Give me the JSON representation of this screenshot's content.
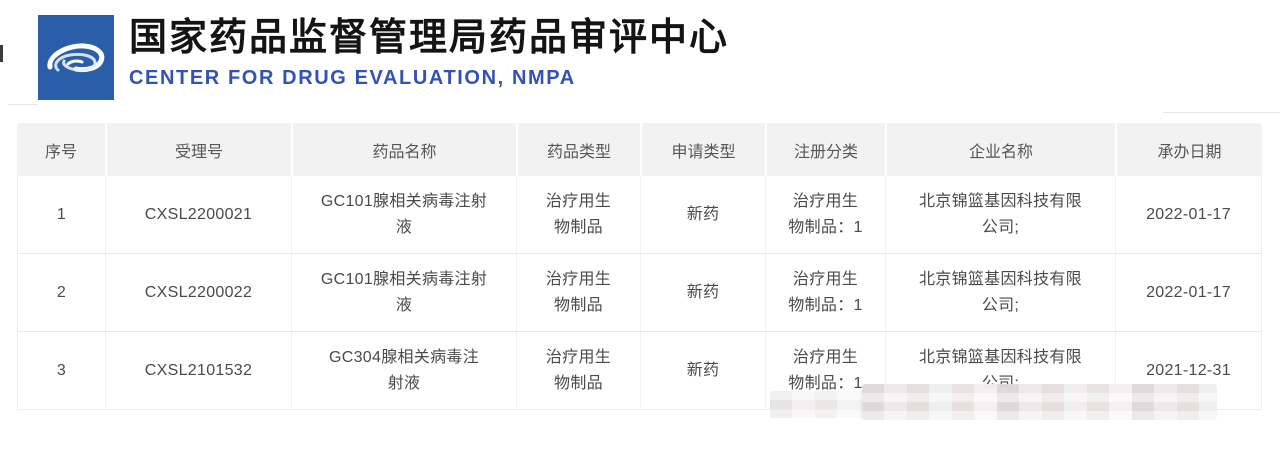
{
  "header": {
    "title_cn": "国家药品监督管理局药品审评中心",
    "title_en": "CENTER FOR DRUG EVALUATION, NMPA",
    "logo_icon": "cde-swan-logo",
    "logo_bg_color": "#2b5ea9",
    "accent_color": "#3452b4"
  },
  "table": {
    "columns": [
      "序号",
      "受理号",
      "药品名称",
      "药品类型",
      "申请类型",
      "注册分类",
      "企业名称",
      "承办日期"
    ],
    "rows": [
      [
        "1",
        "CXSL2200021",
        "GC101腺相关病毒注射\n液",
        "治疗用生\n物制品",
        "新药",
        "治疗用生\n物制品：1",
        "北京锦篮基因科技有限\n公司;",
        "2022-01-17"
      ],
      [
        "2",
        "CXSL2200022",
        "GC101腺相关病毒注射\n液",
        "治疗用生\n物制品",
        "新药",
        "治疗用生\n物制品：1",
        "北京锦篮基因科技有限\n公司;",
        "2022-01-17"
      ],
      [
        "3",
        "CXSL2101532",
        "GC304腺相关病毒注\n射液",
        "治疗用生\n物制品",
        "新药",
        "治疗用生\n物制品：1",
        "北京锦篮基因科技有限\n公司;",
        "2021-12-31"
      ]
    ],
    "header_bg": "#f2f2f2",
    "border_color": "#e9e9e9",
    "text_color": "#4a4a4a"
  }
}
